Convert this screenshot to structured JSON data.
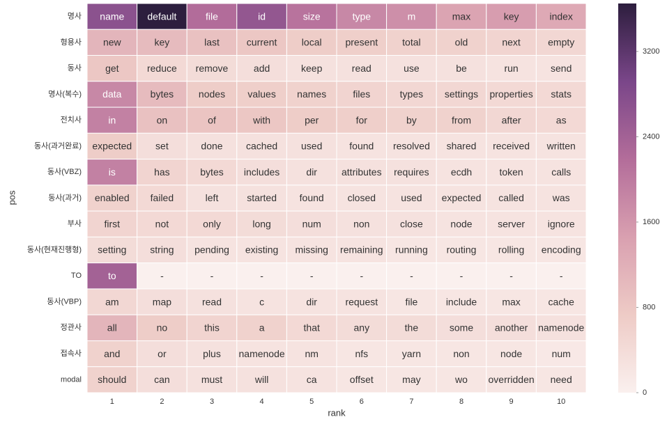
{
  "chart_data": {
    "type": "heatmap",
    "x_label": "rank",
    "y_label": "pos",
    "columns": [
      "1",
      "2",
      "3",
      "4",
      "5",
      "6",
      "7",
      "8",
      "9",
      "10"
    ],
    "rows": [
      "명사",
      "형용사",
      "동사",
      "명사(복수)",
      "전치사",
      "동사(과거완료)",
      "동사(VBZ)",
      "동사(과거)",
      "부사",
      "동사(현재진행형)",
      "TO",
      "동사(VBP)",
      "정관사",
      "접속사",
      "modal"
    ],
    "annotations": [
      [
        "name",
        "default",
        "file",
        "id",
        "size",
        "type",
        "m",
        "max",
        "key",
        "index"
      ],
      [
        "new",
        "key",
        "last",
        "current",
        "local",
        "present",
        "total",
        "old",
        "next",
        "empty"
      ],
      [
        "get",
        "reduce",
        "remove",
        "add",
        "keep",
        "read",
        "use",
        "be",
        "run",
        "send"
      ],
      [
        "data",
        "bytes",
        "nodes",
        "values",
        "names",
        "files",
        "types",
        "settings",
        "properties",
        "stats"
      ],
      [
        "in",
        "on",
        "of",
        "with",
        "per",
        "for",
        "by",
        "from",
        "after",
        "as"
      ],
      [
        "expected",
        "set",
        "done",
        "cached",
        "used",
        "found",
        "resolved",
        "shared",
        "received",
        "written"
      ],
      [
        "is",
        "has",
        "bytes",
        "includes",
        "dir",
        "attributes",
        "requires",
        "ecdh",
        "token",
        "calls"
      ],
      [
        "enabled",
        "failed",
        "left",
        "started",
        "found",
        "closed",
        "used",
        "expected",
        "called",
        "was"
      ],
      [
        "first",
        "not",
        "only",
        "long",
        "num",
        "non",
        "close",
        "node",
        "server",
        "ignore"
      ],
      [
        "setting",
        "string",
        "pending",
        "existing",
        "missing",
        "remaining",
        "running",
        "routing",
        "rolling",
        "encoding"
      ],
      [
        "to",
        "-",
        "-",
        "-",
        "-",
        "-",
        "-",
        "-",
        "-",
        "-"
      ],
      [
        "am",
        "map",
        "read",
        "c",
        "dir",
        "request",
        "file",
        "include",
        "max",
        "cache"
      ],
      [
        "all",
        "no",
        "this",
        "a",
        "that",
        "any",
        "the",
        "some",
        "another",
        "namenode"
      ],
      [
        "and",
        "or",
        "plus",
        "namenode",
        "nm",
        "nfs",
        "yarn",
        "non",
        "node",
        "num"
      ],
      [
        "should",
        "can",
        "must",
        "will",
        "ca",
        "offset",
        "may",
        "wo",
        "overridden",
        "need"
      ]
    ],
    "values": [
      [
        2700,
        3650,
        2200,
        2600,
        2100,
        1800,
        1700,
        1400,
        1500,
        1300
      ],
      [
        1100,
        1000,
        900,
        800,
        700,
        650,
        600,
        600,
        550,
        500
      ],
      [
        800,
        450,
        400,
        350,
        300,
        300,
        300,
        300,
        250,
        250
      ],
      [
        1800,
        1000,
        700,
        650,
        600,
        550,
        500,
        500,
        450,
        450
      ],
      [
        1900,
        900,
        850,
        800,
        700,
        650,
        600,
        600,
        500,
        450
      ],
      [
        700,
        350,
        300,
        300,
        300,
        250,
        250,
        250,
        250,
        250
      ],
      [
        1900,
        550,
        450,
        350,
        300,
        300,
        300,
        250,
        250,
        250
      ],
      [
        600,
        450,
        300,
        300,
        250,
        250,
        250,
        250,
        250,
        250
      ],
      [
        550,
        450,
        450,
        400,
        350,
        300,
        300,
        250,
        250,
        250
      ],
      [
        400,
        350,
        250,
        250,
        250,
        250,
        200,
        200,
        200,
        200
      ],
      [
        2400,
        0,
        0,
        0,
        0,
        0,
        0,
        0,
        0,
        0
      ],
      [
        500,
        350,
        300,
        250,
        250,
        250,
        200,
        200,
        200,
        200
      ],
      [
        1100,
        700,
        550,
        600,
        450,
        400,
        400,
        350,
        350,
        300
      ],
      [
        600,
        350,
        300,
        250,
        250,
        200,
        200,
        200,
        200,
        150
      ],
      [
        600,
        350,
        300,
        300,
        250,
        200,
        200,
        200,
        200,
        200
      ]
    ],
    "colormap": [
      "#faf0ee",
      "#eecbc6",
      "#d9a0b0",
      "#b36d9a",
      "#7a4689",
      "#2d1e3e"
    ],
    "clim": [
      0,
      3650
    ],
    "cticks": [
      0,
      800,
      1600,
      2400,
      3200
    ]
  }
}
